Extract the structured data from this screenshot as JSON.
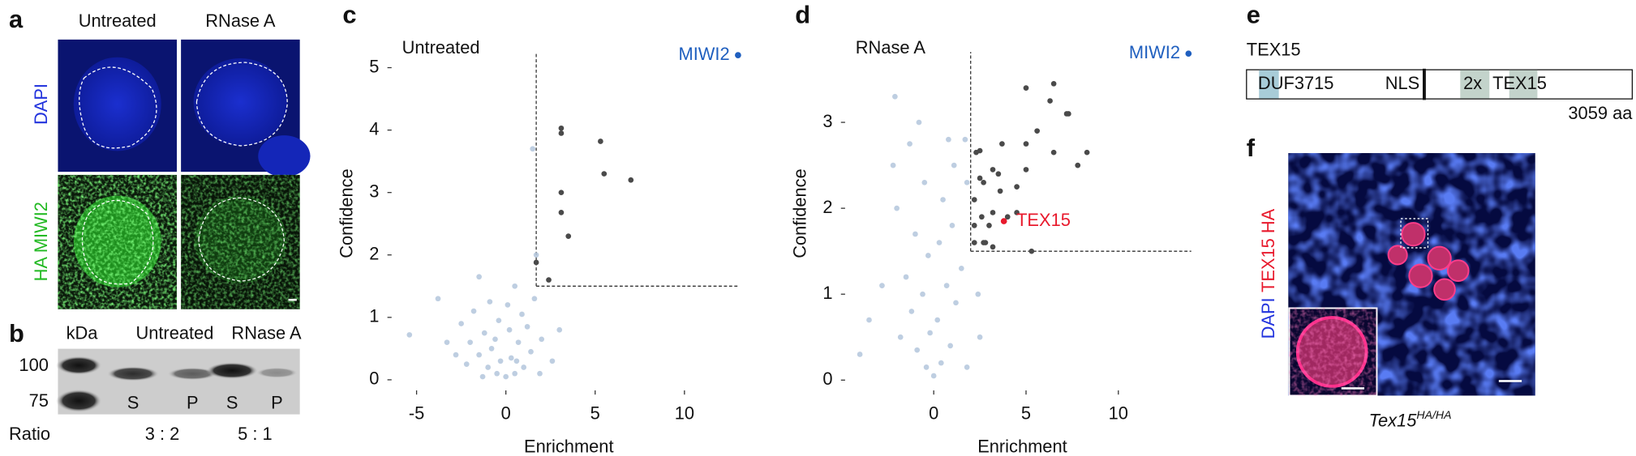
{
  "figure": {
    "a": {
      "letter": "a",
      "col1": "Untreated",
      "col2": "RNase A",
      "row1": "DAPI",
      "row2": "HA MIWI2"
    },
    "b": {
      "letter": "b",
      "kda": "kDa",
      "col1": "Untreated",
      "col2": "RNase A",
      "marker1": "100",
      "marker2": "75",
      "lanes": [
        "S",
        "P",
        "S",
        "P"
      ],
      "ratio_label": "Ratio",
      "ratio1": "3 : 2",
      "ratio2": "5 : 1"
    },
    "e": {
      "letter": "e",
      "protein": "TEX15",
      "domain1": "DUF3715",
      "domain2": "NLS",
      "domain3": "2x",
      "domain4": "TEX15",
      "length": "3059 aa"
    },
    "f": {
      "letter": "f",
      "label1": "DAPI",
      "label2": "TEX15 HA",
      "genotype": "Tex15",
      "genotype_sup": "HA/HA"
    }
  },
  "chart_data": [
    {
      "type": "scatter",
      "letter": "c",
      "title": "Untreated",
      "x_label": "Enrichment",
      "y_label": "Confidence",
      "xlim": [
        -6.4,
        13.45
      ],
      "ylim": [
        -0.17,
        5.5
      ],
      "xticks": [
        -5,
        0,
        5,
        10
      ],
      "yticks": [
        0,
        1,
        2,
        3,
        4,
        5
      ],
      "threshold_x": 1.7,
      "threshold_y": 1.5,
      "series": [
        {
          "color": "#b3c6dc",
          "x": [
            0,
            -0.5,
            0.5,
            -1,
            1,
            -0.3,
            0.3,
            -1.5,
            1.4,
            -0.8,
            0.7,
            -2,
            2,
            -1.2,
            0.2,
            1.2,
            -0.4,
            -2.5,
            0.9,
            -1.8,
            -0.9,
            -3.8,
            -1.5,
            0.1,
            1.6,
            -2.8,
            2.6,
            -3.3,
            0.5,
            1.5,
            1.7,
            -5.4,
            0.6,
            -0.6,
            3.0,
            -2.2,
            1.9,
            -1.3
          ],
          "y": [
            0.05,
            0.1,
            0.1,
            0.2,
            0.2,
            0.3,
            0.35,
            0.4,
            0.45,
            0.5,
            0.6,
            0.6,
            0.65,
            0.75,
            0.8,
            0.85,
            0.95,
            0.9,
            1.05,
            1.1,
            1.25,
            1.3,
            1.65,
            1.2,
            1.3,
            0.4,
            0.3,
            0.6,
            1.5,
            3.7,
            2.0,
            0.72,
            0.3,
            0.65,
            0.8,
            0.25,
            0.1,
            0.05
          ]
        },
        {
          "color": "#4a4a4a",
          "x": [
            3.1,
            3.1,
            5.3,
            5.5,
            7,
            3.1,
            3.1,
            3.5,
            1.7,
            2.4
          ],
          "y": [
            4.03,
            3.95,
            3.82,
            3.3,
            3.2,
            3.0,
            2.68,
            2.3,
            1.88,
            1.6
          ]
        }
      ],
      "annotations": [
        {
          "text": "MIWI2",
          "x": 13,
          "y": 5.2,
          "color": "#1f5fbf"
        }
      ]
    },
    {
      "type": "scatter",
      "letter": "d",
      "title": "RNase A",
      "x_label": "Enrichment",
      "y_label": "Confidence",
      "xlim": [
        -4.8,
        14.4
      ],
      "ylim": [
        -0.12,
        4.0
      ],
      "xticks": [
        0,
        5,
        10
      ],
      "yticks": [
        0,
        1,
        2,
        3
      ],
      "threshold_x": 2.0,
      "threshold_y": 1.5,
      "series": [
        {
          "color": "#b3c6dc",
          "x": [
            0,
            -0.4,
            0.4,
            -0.9,
            0.9,
            -0.2,
            0.2,
            -1.2,
            1.2,
            -0.6,
            0.7,
            -1.5,
            1.5,
            -0.3,
            0.3,
            -1,
            1,
            -2,
            0.5,
            -0.5,
            -2.2,
            1.1,
            -1.3,
            0.8,
            -2.1,
            -0.8,
            1.7,
            1.8,
            -3.5,
            -4,
            2.5,
            -1.8,
            1.8,
            -2.8,
            2.4
          ],
          "y": [
            0.05,
            0.15,
            0.2,
            0.35,
            0.4,
            0.55,
            0.7,
            0.8,
            0.9,
            1.0,
            1.1,
            1.2,
            1.3,
            1.45,
            1.6,
            1.7,
            1.8,
            2.0,
            2.1,
            2.3,
            2.5,
            2.5,
            2.75,
            2.8,
            3.3,
            3.0,
            2.8,
            2.3,
            0.7,
            0.3,
            0.5,
            0.5,
            0.15,
            1.1,
            1.0
          ]
        },
        {
          "color": "#4a4a4a",
          "x": [
            2.3,
            2.5,
            3.2,
            3.5,
            2.5,
            2.7,
            2.2,
            3.6,
            4.5,
            5,
            5,
            6.3,
            7.3,
            7.2,
            7.8,
            8.3,
            6.5,
            5,
            3.7,
            2.6,
            2.2,
            3.2,
            4.5,
            5.6,
            6.5,
            2.7,
            2.8,
            3.2,
            5.3,
            2.2,
            4,
            3
          ],
          "y": [
            2.65,
            2.67,
            2.45,
            2.4,
            2.35,
            2.3,
            2.1,
            2.2,
            2.25,
            2.45,
            3.4,
            3.25,
            3.1,
            3.1,
            2.5,
            2.65,
            2.65,
            2.75,
            2.75,
            1.9,
            1.8,
            1.95,
            1.95,
            2.9,
            3.45,
            1.6,
            1.6,
            1.55,
            1.5,
            1.6,
            1.9,
            1.8
          ]
        }
      ],
      "annotations": [
        {
          "text": "MIWI2",
          "x": 13.8,
          "y": 3.8,
          "color": "#1f5fbf"
        },
        {
          "text": "TEX15",
          "x": 3.8,
          "y": 1.85,
          "color": "#e8192c"
        }
      ]
    }
  ]
}
